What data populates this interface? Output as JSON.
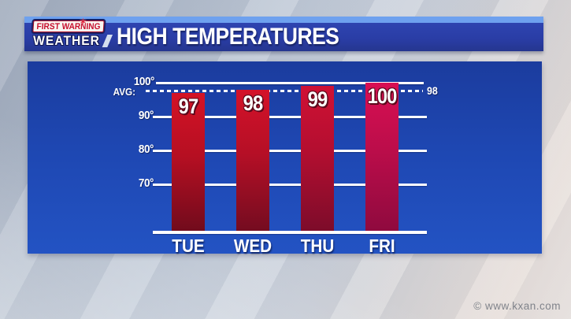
{
  "header": {
    "logo": {
      "line1": "FIRST WARNING",
      "line2": "WEATHER",
      "star_glyph": "✶"
    },
    "title": "HIGH TEMPERATURES"
  },
  "chart_data": {
    "type": "bar",
    "title": "HIGH TEMPERATURES",
    "categories": [
      "TUE",
      "WED",
      "THU",
      "FRI"
    ],
    "values": [
      97,
      98,
      99,
      100
    ],
    "y_tick_labels": [
      "100°",
      "90°",
      "80°",
      "70°"
    ],
    "y_ticks": [
      100,
      90,
      80,
      70
    ],
    "ylim": [
      55,
      102
    ],
    "grid": true,
    "average": {
      "label": "AVG:",
      "value": 98,
      "line_style": "dashed"
    },
    "bar_colors": [
      {
        "top": "#d41326",
        "mid": "#b60f22",
        "bottom": "#6f0b1c"
      },
      {
        "top": "#d41229",
        "mid": "#b50f26",
        "bottom": "#720c20"
      },
      {
        "top": "#d01134",
        "mid": "#b30e30",
        "bottom": "#7b0c2a"
      },
      {
        "top": "#d90f53",
        "mid": "#bb0d4a",
        "bottom": "#8e0a3e"
      }
    ]
  },
  "colors": {
    "header_bar": "#2a3da6",
    "header_accent_strip": "#6ea1ef",
    "panel_top": "#1b3c9e",
    "panel_bottom": "#2353c3",
    "gridline": "#ffffff",
    "logo_red": "#c8102e"
  },
  "watermark": "© www.kxan.com"
}
